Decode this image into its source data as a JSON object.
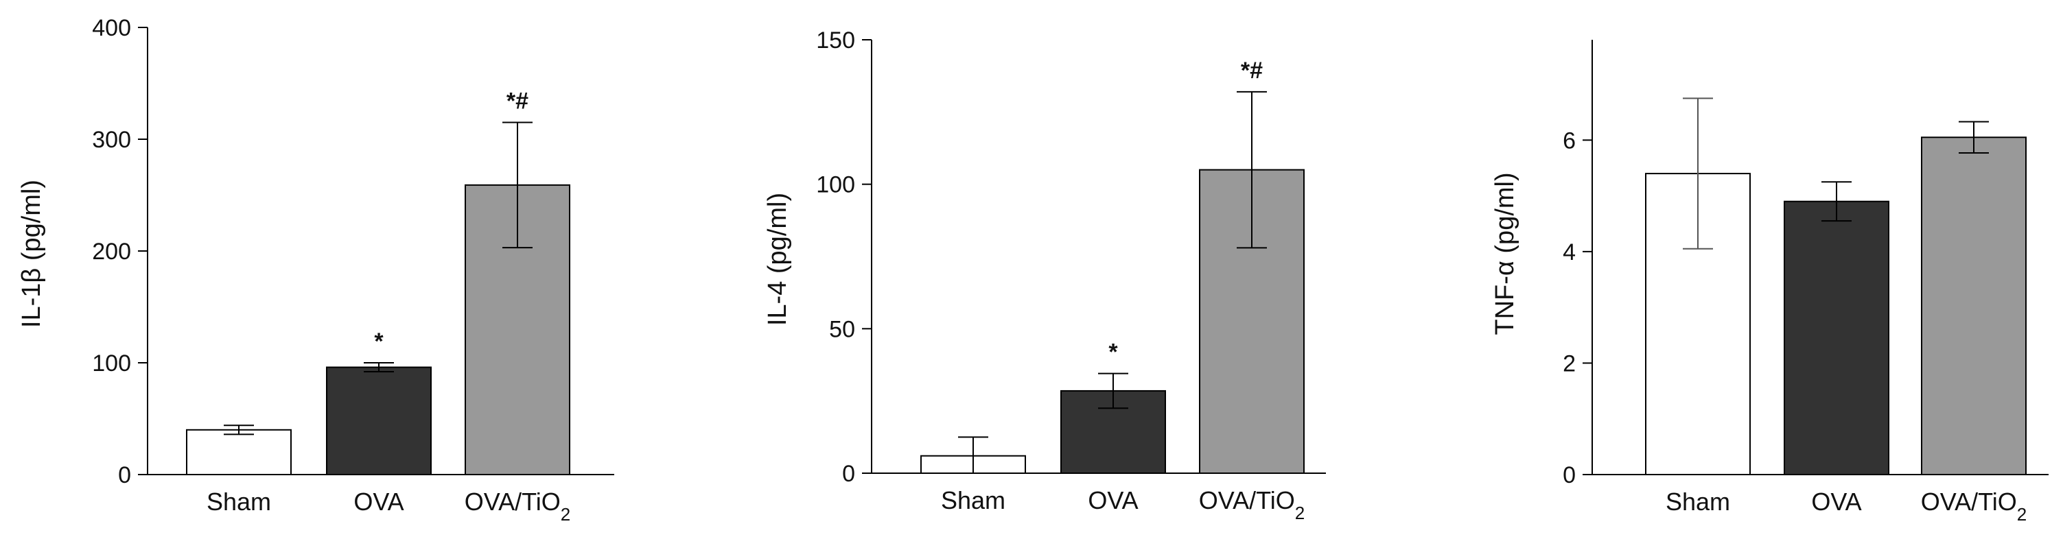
{
  "chart_data": [
    {
      "type": "bar",
      "ylabel": "IL-1β (pg/ml)",
      "categories": [
        "Sham",
        "OVA",
        "OVA/TiO"
      ],
      "subscripts": [
        "",
        "",
        "2"
      ],
      "values": [
        40,
        96,
        259
      ],
      "errors": [
        4,
        4,
        56
      ],
      "significance": [
        "",
        "*",
        "*#"
      ],
      "ylim": [
        0,
        400
      ],
      "yticks": [
        "0",
        "100",
        "200",
        "300",
        "400"
      ],
      "ytick_values": [
        0,
        100,
        200,
        300,
        400
      ],
      "colors": [
        "#ffffff",
        "#333333",
        "#999999"
      ]
    },
    {
      "type": "bar",
      "ylabel": "IL-4 (pg/ml)",
      "categories": [
        "Sham",
        "OVA",
        "OVA/TiO"
      ],
      "subscripts": [
        "",
        "",
        "2"
      ],
      "values": [
        6,
        28.5,
        105
      ],
      "errors": [
        6.5,
        6,
        27
      ],
      "significance": [
        "",
        "*",
        "*#"
      ],
      "ylim": [
        0,
        150
      ],
      "yticks": [
        "0",
        "50",
        "100",
        "150"
      ],
      "ytick_values": [
        0,
        50,
        100,
        150
      ],
      "colors": [
        "#ffffff",
        "#333333",
        "#999999"
      ]
    },
    {
      "type": "bar",
      "ylabel": "TNF-α (pg/ml)",
      "categories": [
        "Sham",
        "OVA",
        "OVA/TiO"
      ],
      "subscripts": [
        "",
        "",
        "2"
      ],
      "values": [
        5.4,
        4.9,
        6.05
      ],
      "errors": [
        1.35,
        0.35,
        0.28
      ],
      "significance": [
        "",
        "",
        ""
      ],
      "ylim": [
        0,
        7.8
      ],
      "yticks": [
        "0",
        "2",
        "4",
        "6"
      ],
      "ytick_values": [
        0,
        2,
        4,
        6
      ],
      "colors": [
        "#ffffff",
        "#333333",
        "#999999"
      ]
    }
  ]
}
